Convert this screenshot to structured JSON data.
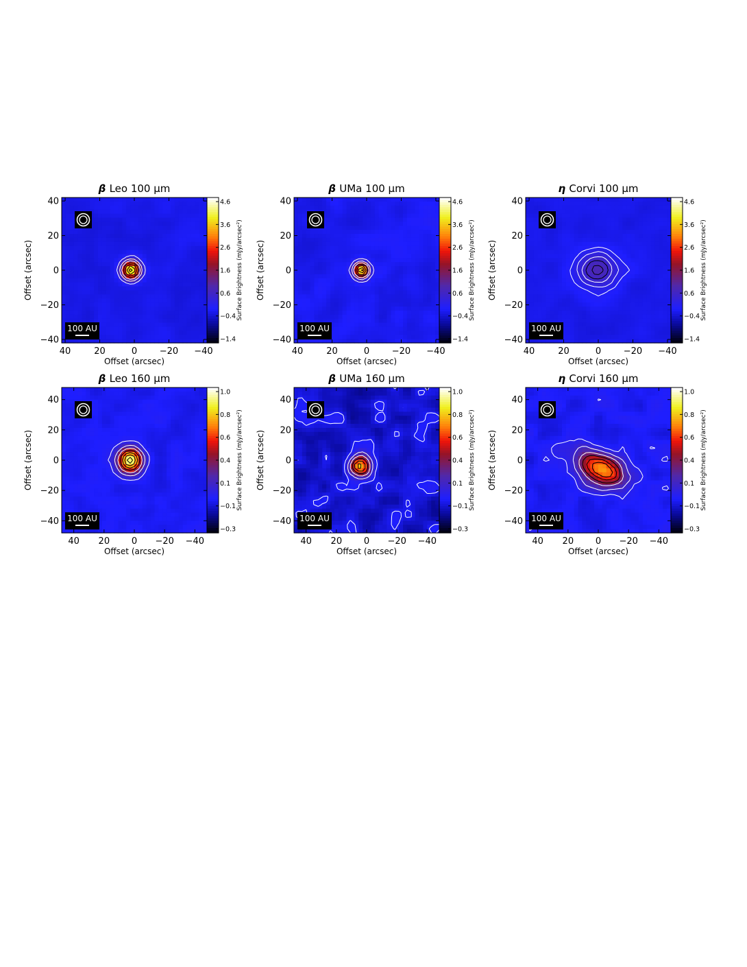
{
  "colors": {
    "background": "#3c2aa6",
    "low": "#000000",
    "mid_blue": "#1010ff",
    "purple": "#5a2a9a",
    "red": "#e01010",
    "orange": "#ff7a10",
    "yellow": "#ffff30",
    "white": "#ffffff",
    "contour_white": "#ffffff",
    "contour_black": "#000000"
  },
  "chart_data": [
    {
      "type": "heatmap",
      "title_prefix": "β",
      "title": "Leo 100 μm",
      "xlabel": "Offset (arcsec)",
      "ylabel": "Offset (arcsec)",
      "xticks": [
        "40",
        "20",
        "0",
        "−20",
        "−40"
      ],
      "yticks": [
        "40",
        "20",
        "0",
        "−20",
        "−40"
      ],
      "xlim": [
        42,
        -42
      ],
      "ylim": [
        -42,
        42
      ],
      "colorbar_label": "Surface Brightness (mJy/arcsec²)",
      "colorbar_ticks": [
        "4.6",
        "3.6",
        "2.6",
        "1.6",
        "0.6",
        "−0.4",
        "−1.4"
      ],
      "colorbar_range": [
        -1.4,
        4.6
      ],
      "scale_bar": "100 AU",
      "beam_icon": "beam-circle-icon",
      "source": {
        "x": 2,
        "y": 0,
        "peak": 4.6,
        "sigma_x": 3.6,
        "sigma_y": 3.6,
        "angle": 0
      },
      "bg_level": -0.1,
      "noise": 0.15,
      "contours_white": [
        0.3,
        0.9,
        1.5
      ],
      "contours_black": [
        2.2,
        2.9,
        3.6,
        4.2
      ]
    },
    {
      "type": "heatmap",
      "title_prefix": "β",
      "title": "UMa 100 μm",
      "xlabel": "Offset (arcsec)",
      "ylabel": "Offset (arcsec)",
      "xticks": [
        "40",
        "20",
        "0",
        "−20",
        "−40"
      ],
      "yticks": [
        "40",
        "20",
        "0",
        "−20",
        "−40"
      ],
      "xlim": [
        42,
        -42
      ],
      "ylim": [
        -42,
        42
      ],
      "colorbar_label": "Surface Brightness (mJy/arcsec²)",
      "colorbar_ticks": [
        "4.6",
        "3.6",
        "2.6",
        "1.6",
        "0.6",
        "−0.4",
        "−1.4"
      ],
      "colorbar_range": [
        -1.4,
        4.6
      ],
      "scale_bar": "100 AU",
      "beam_icon": "beam-circle-icon",
      "source": {
        "x": 3,
        "y": 0,
        "peak": 4.6,
        "sigma_x": 3.0,
        "sigma_y": 3.0,
        "angle": 0
      },
      "bg_level": -0.05,
      "noise": 0.22,
      "contours_white": [
        0.3,
        0.9,
        1.5
      ],
      "contours_black": [
        2.2,
        2.9,
        3.6,
        4.2
      ]
    },
    {
      "type": "heatmap",
      "title_prefix": "η",
      "title": "Corvi 100 μm",
      "xlabel": "Offset (arcsec)",
      "ylabel": "Offset (arcsec)",
      "xticks": [
        "40",
        "20",
        "0",
        "−20",
        "−40"
      ],
      "yticks": [
        "40",
        "20",
        "0",
        "−20",
        "−40"
      ],
      "xlim": [
        42,
        -42
      ],
      "ylim": [
        -42,
        42
      ],
      "colorbar_label": "Surface Brightness (mJy/arcsec²)",
      "colorbar_ticks": [
        "4.6",
        "3.6",
        "2.6",
        "1.6",
        "0.6",
        "−0.4",
        "−1.4"
      ],
      "colorbar_range": [
        -1.4,
        4.6
      ],
      "scale_bar": "100 AU",
      "beam_icon": "beam-circle-icon",
      "source": {
        "x": 0,
        "y": 0,
        "peak": 1.0,
        "sigma_x": 9.0,
        "sigma_y": 8.0,
        "angle": 0
      },
      "bg_level": -0.1,
      "noise": 0.12,
      "contours_white": [
        0.15,
        0.35,
        0.55
      ],
      "contours_black": [
        0.7,
        0.85
      ]
    },
    {
      "type": "heatmap",
      "title_prefix": "β",
      "title": "Leo 160 μm",
      "xlabel": "Offset (arcsec)",
      "ylabel": "Offset (arcsec)",
      "xticks": [
        "40",
        "20",
        "0",
        "−20",
        "−40"
      ],
      "yticks": [
        "40",
        "20",
        "0",
        "−20",
        "−40"
      ],
      "xlim": [
        48,
        -48
      ],
      "ylim": [
        -48,
        48
      ],
      "colorbar_label": "Surface Brightness (mJy/arcsec²)",
      "colorbar_ticks": [
        "1.0",
        "0.8",
        "0.6",
        "0.4",
        "0.1",
        "−0.1",
        "−0.3"
      ],
      "colorbar_range": [
        -0.3,
        1.0
      ],
      "scale_bar": "100 AU",
      "beam_icon": "beam-circle-icon",
      "source": {
        "x": 3,
        "y": 0,
        "peak": 1.0,
        "sigma_x": 5.5,
        "sigma_y": 5.5,
        "angle": 0
      },
      "bg_level": 0.0,
      "noise": 0.05,
      "contours_white": [
        0.06,
        0.2,
        0.35
      ],
      "contours_black": [
        0.5,
        0.65,
        0.8,
        0.92
      ]
    },
    {
      "type": "heatmap",
      "title_prefix": "β",
      "title": "UMa 160 μm",
      "xlabel": "Offset (arcsec)",
      "ylabel": "Offset (arcsec)",
      "xticks": [
        "40",
        "20",
        "0",
        "−20",
        "−40"
      ],
      "yticks": [
        "40",
        "20",
        "0",
        "−20",
        "−40"
      ],
      "xlim": [
        48,
        -48
      ],
      "ylim": [
        -48,
        48
      ],
      "colorbar_label": "Surface Brightness (mJy/arcsec²)",
      "colorbar_ticks": [
        "1.0",
        "0.8",
        "0.6",
        "0.4",
        "0.1",
        "−0.1",
        "−0.3"
      ],
      "colorbar_range": [
        -0.3,
        1.0
      ],
      "scale_bar": "100 AU",
      "beam_icon": "beam-circle-icon",
      "source": {
        "x": 5,
        "y": -4,
        "peak": 0.85,
        "sigma_x": 5.0,
        "sigma_y": 5.0,
        "angle": 0
      },
      "bg_level": -0.05,
      "noise": 0.13,
      "contours_white": [
        0.0,
        0.15,
        0.3
      ],
      "contours_black": [
        0.45,
        0.6,
        0.75
      ]
    },
    {
      "type": "heatmap",
      "title_prefix": "η",
      "title": "Corvi 160 μm",
      "xlabel": "Offset (arcsec)",
      "ylabel": "Offset (arcsec)",
      "xticks": [
        "40",
        "20",
        "0",
        "−20",
        "−40"
      ],
      "yticks": [
        "40",
        "20",
        "0",
        "−20",
        "−40"
      ],
      "xlim": [
        48,
        -48
      ],
      "ylim": [
        -48,
        48
      ],
      "colorbar_label": "Surface Brightness (mJy/arcsec²)",
      "colorbar_ticks": [
        "1.0",
        "0.8",
        "0.6",
        "0.4",
        "0.1",
        "−0.1",
        "−0.3"
      ],
      "colorbar_range": [
        -0.3,
        1.0
      ],
      "scale_bar": "100 AU",
      "beam_icon": "beam-circle-icon",
      "source": {
        "x": -2,
        "y": -6,
        "peak": 0.72,
        "sigma_x": 12.0,
        "sigma_y": 7.0,
        "angle": 25
      },
      "bg_level": 0.0,
      "noise": 0.07,
      "contours_white": [
        0.05,
        0.15,
        0.28
      ],
      "contours_black": [
        0.38,
        0.5,
        0.6
      ]
    }
  ]
}
